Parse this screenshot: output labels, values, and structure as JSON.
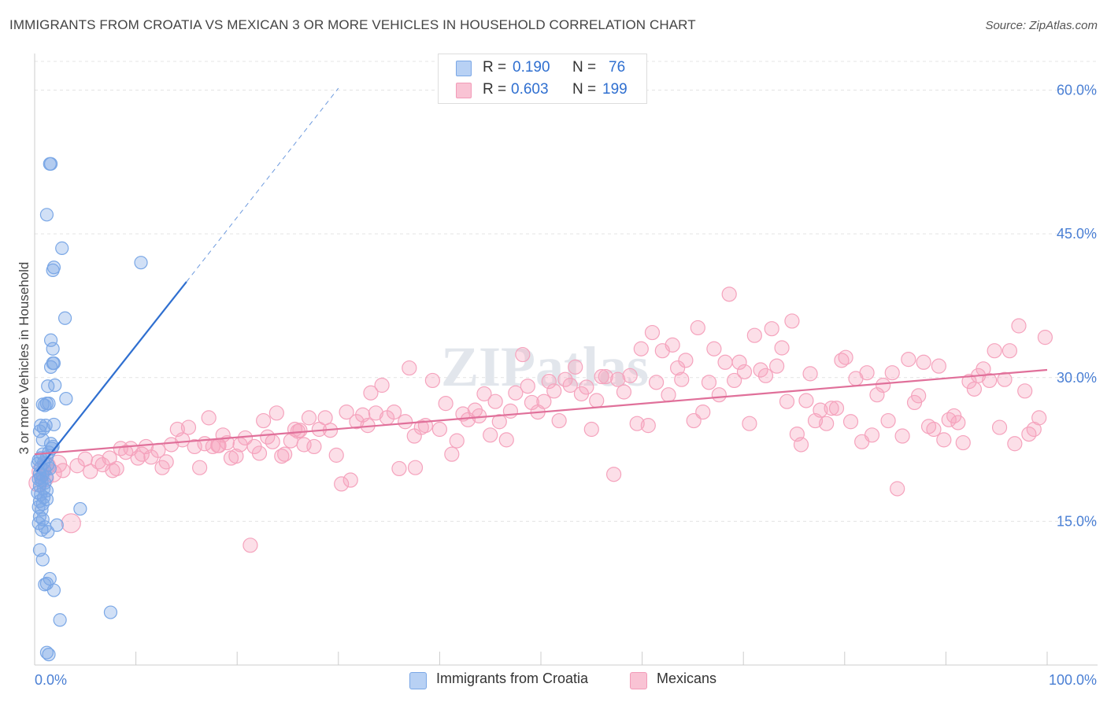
{
  "chart_data": {
    "type": "scatter",
    "title": "IMMIGRANTS FROM CROATIA VS MEXICAN 3 OR MORE VEHICLES IN HOUSEHOLD CORRELATION CHART",
    "source": "Source: ZipAtlas.com",
    "ylabel": "3 or more Vehicles in Household",
    "xlabel": "",
    "xlim": [
      0,
      100
    ],
    "ylim": [
      0,
      63
    ],
    "x_tick_labels": [
      "0.0%",
      "100.0%"
    ],
    "y_ticks": [
      15,
      30,
      45,
      60
    ],
    "y_tick_labels": [
      "15.0%",
      "30.0%",
      "45.0%",
      "60.0%"
    ],
    "grid": true,
    "watermark": "ZIPatlas",
    "legend": {
      "position": "top-center",
      "entries": [
        {
          "r_label": "R =",
          "r_value": "0.190",
          "n_label": "N =",
          "n_value": "76"
        },
        {
          "r_label": "R =",
          "r_value": "0.603",
          "n_label": "N =",
          "n_value": "199"
        }
      ]
    },
    "series": [
      {
        "name": "Immigrants from Croatia",
        "color": "#7aa7e6",
        "line_color": "#2f6fd0",
        "trend": {
          "x0": 0.2,
          "y0": 20.2,
          "x1": 15,
          "y1": 40.0,
          "dash_to_x": 30,
          "dash_to_y": 60.2
        },
        "points": [
          [
            1.5,
            52.3
          ],
          [
            1.6,
            52.3
          ],
          [
            1.2,
            47
          ],
          [
            2.7,
            43.5
          ],
          [
            1.8,
            41.2
          ],
          [
            1.9,
            41.5
          ],
          [
            10.5,
            42
          ],
          [
            3,
            36.2
          ],
          [
            1.6,
            33.9
          ],
          [
            1.8,
            33.0
          ],
          [
            1.6,
            31.1
          ],
          [
            1.8,
            31.5
          ],
          [
            1.9,
            31.5
          ],
          [
            2,
            29.2
          ],
          [
            1.3,
            29.1
          ],
          [
            3.1,
            27.8
          ],
          [
            0.8,
            27.2
          ],
          [
            1.2,
            27.3
          ],
          [
            1.4,
            27.3
          ],
          [
            1.0,
            27.1
          ],
          [
            0.6,
            25.0
          ],
          [
            0.9,
            24.7
          ],
          [
            1.1,
            25.0
          ],
          [
            1.9,
            25.1
          ],
          [
            0.5,
            24.4
          ],
          [
            0.8,
            23.5
          ],
          [
            1.6,
            23.1
          ],
          [
            1.8,
            22.8
          ],
          [
            1.7,
            22.6
          ],
          [
            1.4,
            22.2
          ],
          [
            0.8,
            22.0
          ],
          [
            0.6,
            21.6
          ],
          [
            1.2,
            21.7
          ],
          [
            0.4,
            21.4
          ],
          [
            0.9,
            21.1
          ],
          [
            1.3,
            20.9
          ],
          [
            0.6,
            20.6
          ],
          [
            1.0,
            20.3
          ],
          [
            0.5,
            20.0
          ],
          [
            0.8,
            19.8
          ],
          [
            1.2,
            19.6
          ],
          [
            0.4,
            19.4
          ],
          [
            0.7,
            19.2
          ],
          [
            1.0,
            19.0
          ],
          [
            0.5,
            18.7
          ],
          [
            0.9,
            18.4
          ],
          [
            1.2,
            18.2
          ],
          [
            0.3,
            18.0
          ],
          [
            0.6,
            17.8
          ],
          [
            0.9,
            17.5
          ],
          [
            1.2,
            17.3
          ],
          [
            0.5,
            17.1
          ],
          [
            0.8,
            16.8
          ],
          [
            0.4,
            16.5
          ],
          [
            0.7,
            16.2
          ],
          [
            4.5,
            16.3
          ],
          [
            0.5,
            15.5
          ],
          [
            0.8,
            15.2
          ],
          [
            0.4,
            14.8
          ],
          [
            1.0,
            14.4
          ],
          [
            0.7,
            14.1
          ],
          [
            1.3,
            13.9
          ],
          [
            2.2,
            14.6
          ],
          [
            0.5,
            12.0
          ],
          [
            0.8,
            11.0
          ],
          [
            1.5,
            9.0
          ],
          [
            1.2,
            8.5
          ],
          [
            1.9,
            7.8
          ],
          [
            1.0,
            8.4
          ],
          [
            2.5,
            4.7
          ],
          [
            7.5,
            5.5
          ],
          [
            1.2,
            1.3
          ],
          [
            1.4,
            1.1
          ],
          [
            0.6,
            19.5
          ],
          [
            1.5,
            20.5
          ],
          [
            0.3,
            21.0
          ]
        ]
      },
      {
        "name": "Mexicans",
        "color": "#f5a3bd",
        "line_color": "#e0709a",
        "trend": {
          "x0": 0,
          "y0": 22.0,
          "x1": 100,
          "y1": 30.8
        },
        "points": [
          [
            0.3,
            19.0
          ],
          [
            0.6,
            20.2
          ],
          [
            1.0,
            19.5
          ],
          [
            1.2,
            20.8
          ],
          [
            1.8,
            20.0
          ],
          [
            2.3,
            21.0
          ],
          [
            2.8,
            20.3
          ],
          [
            3.6,
            14.8
          ],
          [
            4.2,
            20.8
          ],
          [
            5.0,
            21.5
          ],
          [
            5.5,
            20.2
          ],
          [
            6.3,
            21.2
          ],
          [
            6.7,
            20.9
          ],
          [
            7.4,
            21.6
          ],
          [
            7.7,
            20.3
          ],
          [
            8.1,
            20.5
          ],
          [
            8.5,
            22.6
          ],
          [
            9.0,
            22.2
          ],
          [
            9.5,
            22.6
          ],
          [
            10.2,
            21.6
          ],
          [
            10.6,
            22.0
          ],
          [
            11.0,
            22.8
          ],
          [
            11.5,
            21.7
          ],
          [
            12.2,
            22.4
          ],
          [
            12.6,
            20.6
          ],
          [
            13.0,
            21.2
          ],
          [
            13.5,
            23.0
          ],
          [
            14.1,
            24.6
          ],
          [
            14.6,
            23.5
          ],
          [
            15.2,
            24.8
          ],
          [
            15.8,
            22.8
          ],
          [
            16.3,
            20.6
          ],
          [
            16.8,
            23.1
          ],
          [
            17.2,
            25.8
          ],
          [
            17.6,
            22.8
          ],
          [
            18.2,
            22.9
          ],
          [
            18.6,
            24.0
          ],
          [
            19.0,
            23.2
          ],
          [
            19.4,
            21.6
          ],
          [
            19.9,
            21.8
          ],
          [
            20.3,
            23.0
          ],
          [
            20.8,
            23.7
          ],
          [
            21.3,
            12.5
          ],
          [
            21.7,
            22.8
          ],
          [
            22.2,
            22.1
          ],
          [
            22.6,
            25.5
          ],
          [
            23.0,
            23.8
          ],
          [
            23.5,
            23.3
          ],
          [
            23.9,
            26.3
          ],
          [
            24.4,
            21.8
          ],
          [
            24.7,
            22.0
          ],
          [
            25.3,
            23.4
          ],
          [
            25.7,
            24.6
          ],
          [
            26.2,
            24.5
          ],
          [
            26.6,
            23.0
          ],
          [
            27.1,
            25.8
          ],
          [
            27.6,
            22.8
          ],
          [
            28.1,
            24.6
          ],
          [
            28.7,
            25.8
          ],
          [
            29.2,
            24.5
          ],
          [
            29.8,
            21.9
          ],
          [
            30.3,
            18.9
          ],
          [
            30.8,
            26.4
          ],
          [
            31.2,
            19.3
          ],
          [
            31.8,
            25.4
          ],
          [
            32.4,
            26.1
          ],
          [
            32.9,
            25.0
          ],
          [
            33.2,
            28.4
          ],
          [
            33.7,
            26.3
          ],
          [
            34.3,
            29.2
          ],
          [
            34.8,
            25.8
          ],
          [
            35.5,
            26.4
          ],
          [
            36.0,
            20.5
          ],
          [
            36.6,
            25.4
          ],
          [
            37.0,
            31.0
          ],
          [
            37.5,
            23.9
          ],
          [
            38.2,
            24.8
          ],
          [
            38.6,
            25.0
          ],
          [
            39.3,
            29.7
          ],
          [
            40.0,
            24.6
          ],
          [
            40.6,
            27.3
          ],
          [
            41.2,
            22.0
          ],
          [
            41.7,
            23.4
          ],
          [
            42.3,
            26.2
          ],
          [
            42.8,
            25.6
          ],
          [
            43.5,
            26.6
          ],
          [
            43.9,
            26.0
          ],
          [
            44.4,
            28.3
          ],
          [
            45.0,
            24.0
          ],
          [
            45.5,
            27.5
          ],
          [
            45.9,
            25.4
          ],
          [
            46.6,
            23.5
          ],
          [
            47.0,
            26.5
          ],
          [
            47.5,
            28.4
          ],
          [
            48.2,
            32.4
          ],
          [
            48.7,
            29.1
          ],
          [
            49.1,
            27.4
          ],
          [
            49.7,
            26.4
          ],
          [
            50.3,
            27.5
          ],
          [
            50.8,
            29.6
          ],
          [
            51.3,
            28.6
          ],
          [
            51.8,
            25.5
          ],
          [
            52.4,
            29.8
          ],
          [
            52.9,
            29.2
          ],
          [
            53.4,
            31.1
          ],
          [
            54.0,
            28.3
          ],
          [
            54.5,
            29.0
          ],
          [
            55.0,
            24.6
          ],
          [
            55.5,
            27.6
          ],
          [
            56.0,
            30.1
          ],
          [
            56.4,
            30.1
          ],
          [
            57.2,
            19.9
          ],
          [
            57.6,
            29.8
          ],
          [
            58.2,
            28.5
          ],
          [
            58.8,
            30.2
          ],
          [
            59.5,
            25.2
          ],
          [
            59.9,
            33.0
          ],
          [
            60.6,
            25.0
          ],
          [
            61.0,
            34.7
          ],
          [
            61.4,
            29.5
          ],
          [
            62.0,
            32.8
          ],
          [
            62.6,
            28.2
          ],
          [
            63.0,
            33.4
          ],
          [
            63.5,
            31.0
          ],
          [
            63.9,
            29.8
          ],
          [
            64.3,
            31.8
          ],
          [
            65.1,
            25.5
          ],
          [
            65.5,
            35.2
          ],
          [
            66.0,
            26.4
          ],
          [
            66.6,
            29.5
          ],
          [
            67.1,
            33.0
          ],
          [
            67.6,
            28.2
          ],
          [
            68.2,
            31.6
          ],
          [
            68.6,
            38.7
          ],
          [
            69.1,
            29.7
          ],
          [
            69.6,
            31.6
          ],
          [
            70.1,
            30.6
          ],
          [
            70.6,
            25.2
          ],
          [
            71.1,
            34.4
          ],
          [
            71.7,
            30.8
          ],
          [
            72.2,
            30.2
          ],
          [
            72.8,
            35.1
          ],
          [
            73.3,
            31.2
          ],
          [
            73.8,
            33.1
          ],
          [
            74.3,
            27.5
          ],
          [
            74.8,
            35.9
          ],
          [
            75.3,
            24.1
          ],
          [
            75.7,
            23.0
          ],
          [
            76.2,
            27.6
          ],
          [
            76.6,
            30.4
          ],
          [
            77.1,
            25.5
          ],
          [
            77.6,
            26.6
          ],
          [
            78.2,
            25.2
          ],
          [
            78.7,
            26.8
          ],
          [
            79.2,
            26.8
          ],
          [
            79.7,
            31.8
          ],
          [
            80.1,
            32.1
          ],
          [
            80.6,
            25.4
          ],
          [
            81.1,
            29.9
          ],
          [
            81.7,
            23.3
          ],
          [
            82.2,
            30.5
          ],
          [
            82.7,
            24.0
          ],
          [
            83.2,
            28.2
          ],
          [
            83.8,
            29.2
          ],
          [
            84.3,
            25.5
          ],
          [
            84.7,
            30.5
          ],
          [
            85.2,
            18.4
          ],
          [
            85.7,
            23.9
          ],
          [
            86.3,
            31.9
          ],
          [
            86.9,
            27.4
          ],
          [
            87.3,
            28.1
          ],
          [
            87.8,
            31.6
          ],
          [
            88.3,
            24.9
          ],
          [
            88.8,
            24.6
          ],
          [
            89.3,
            31.2
          ],
          [
            89.8,
            23.5
          ],
          [
            90.3,
            25.6
          ],
          [
            90.8,
            26.0
          ],
          [
            91.2,
            25.3
          ],
          [
            91.7,
            23.2
          ],
          [
            92.3,
            29.6
          ],
          [
            92.8,
            28.8
          ],
          [
            93.2,
            30.2
          ],
          [
            93.7,
            30.9
          ],
          [
            94.3,
            29.7
          ],
          [
            94.8,
            32.8
          ],
          [
            95.3,
            24.8
          ],
          [
            95.8,
            29.8
          ],
          [
            96.3,
            32.8
          ],
          [
            96.8,
            23.1
          ],
          [
            97.2,
            35.4
          ],
          [
            97.8,
            28.6
          ],
          [
            98.2,
            24.1
          ],
          [
            98.7,
            24.6
          ],
          [
            99.2,
            25.8
          ],
          [
            99.8,
            34.2
          ],
          [
            37.6,
            20.6
          ],
          [
            26.0,
            24.4
          ],
          [
            18.1,
            22.9
          ]
        ]
      }
    ]
  },
  "bottom_legend": [
    {
      "label": "Immigrants from Croatia"
    },
    {
      "label": "Mexicans"
    }
  ]
}
